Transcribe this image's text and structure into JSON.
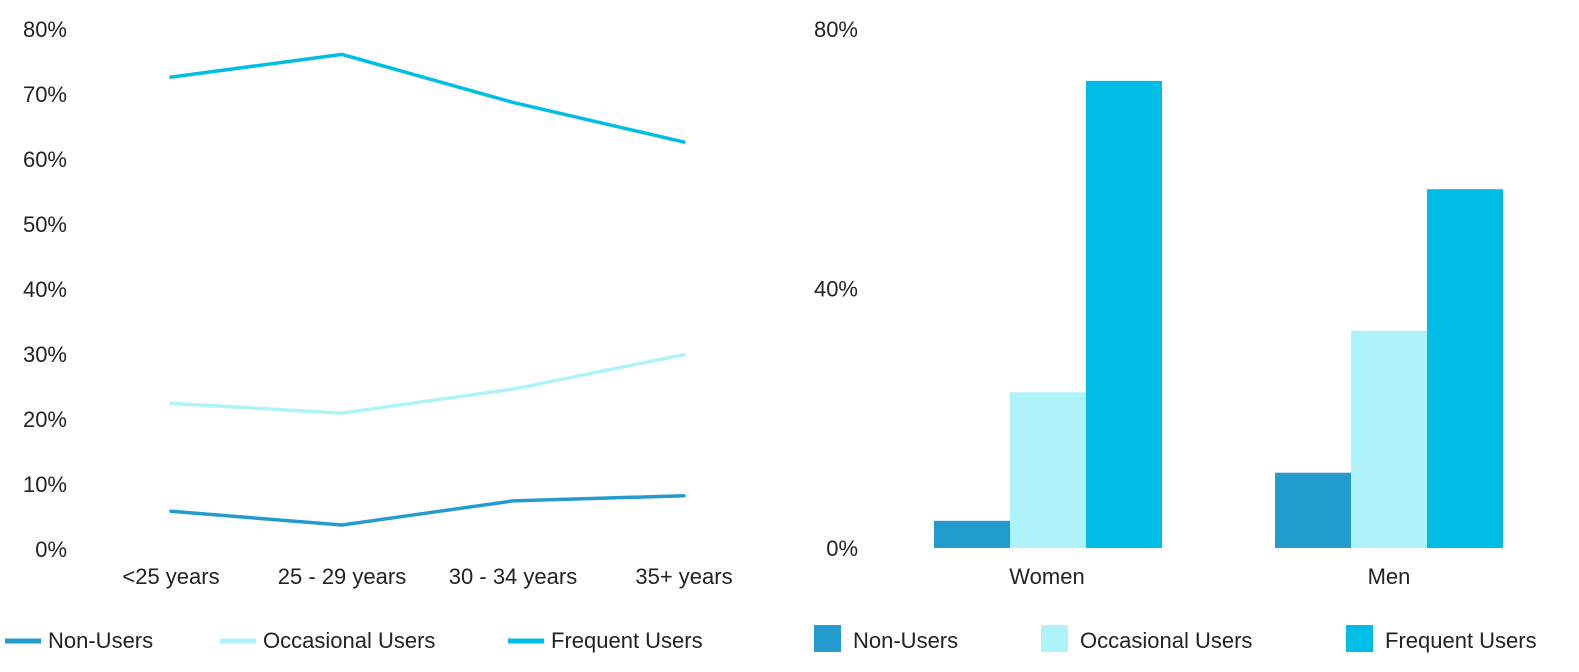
{
  "colors": {
    "non_users": "#249bcf",
    "occasional_users": "#aef3f9",
    "frequent_users": "#00bde6"
  },
  "chart_data": [
    {
      "type": "line",
      "categories": [
        "<25 years",
        "25 - 29 years",
        "30 - 34 years",
        "35+ years"
      ],
      "ylim": [
        0,
        80
      ],
      "yticks": [
        "0%",
        "10%",
        "20%",
        "30%",
        "40%",
        "50%",
        "60%",
        "70%",
        "80%"
      ],
      "grid": false,
      "legend_position": "bottom",
      "series": [
        {
          "name": "Non-Users",
          "color_key": "non_users",
          "values": [
            5.8,
            3.7,
            7.4,
            8.2
          ]
        },
        {
          "name": "Occasional Users",
          "color_key": "occasional_users",
          "values": [
            22.4,
            20.9,
            24.6,
            29.9
          ]
        },
        {
          "name": "Frequent Users",
          "color_key": "frequent_users",
          "values": [
            72.6,
            76.1,
            68.7,
            62.6
          ]
        }
      ]
    },
    {
      "type": "bar",
      "categories": [
        "Women",
        "Men"
      ],
      "ylim": [
        0,
        80
      ],
      "yticks": [
        "0%",
        "40%",
        "80%"
      ],
      "grid": false,
      "legend_position": "bottom",
      "series": [
        {
          "name": "Non-Users",
          "color_key": "non_users",
          "values": [
            4.2,
            11.6
          ]
        },
        {
          "name": "Occasional Users",
          "color_key": "occasional_users",
          "values": [
            24.0,
            33.5
          ]
        },
        {
          "name": "Frequent Users",
          "color_key": "frequent_users",
          "values": [
            72.0,
            55.3
          ]
        }
      ]
    }
  ]
}
